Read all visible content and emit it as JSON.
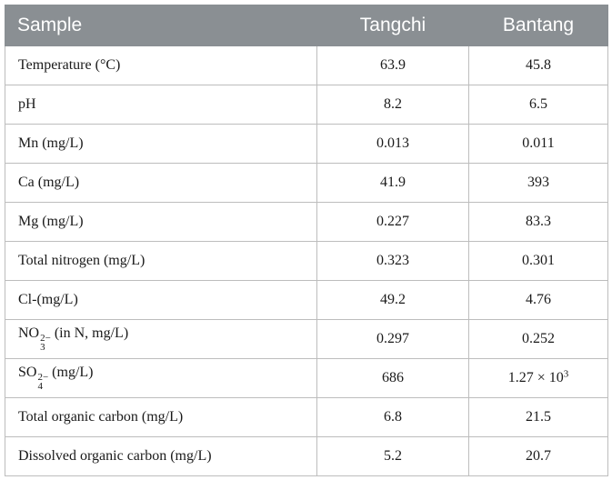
{
  "table": {
    "headers": [
      "Sample",
      "Tangchi",
      "Bantang"
    ],
    "rows": [
      {
        "label": "Temperature (°C)",
        "tangchi": "63.9",
        "bantang": "45.8"
      },
      {
        "label": "pH",
        "tangchi": "8.2",
        "bantang": "6.5"
      },
      {
        "label": "Mn (mg/L)",
        "tangchi": "0.013",
        "bantang": "0.011"
      },
      {
        "label": "Ca (mg/L)",
        "tangchi": "41.9",
        "bantang": "393"
      },
      {
        "label": "Mg (mg/L)",
        "tangchi": "0.227",
        "bantang": "83.3"
      },
      {
        "label": "Total nitrogen (mg/L)",
        "tangchi": "0.323",
        "bantang": "0.301"
      },
      {
        "label": "Cl-(mg/L)",
        "tangchi": "49.2",
        "bantang": "4.76"
      },
      {
        "label_base": "NO",
        "label_sub": "3",
        "label_sup": "2−",
        "label_rest": " (in N, mg/L)",
        "tangchi": "0.297",
        "bantang": "0.252"
      },
      {
        "label_base": "SO",
        "label_sub": "4",
        "label_sup": "2−",
        "label_rest": " (mg/L)",
        "tangchi": "686",
        "bantang_base": "1.27 × 10",
        "bantang_exp": "3"
      },
      {
        "label": "Total organic carbon (mg/L)",
        "tangchi": "6.8",
        "bantang": "21.5"
      },
      {
        "label": "Dissolved organic carbon (mg/L)",
        "tangchi": "5.2",
        "bantang": "20.7"
      }
    ]
  }
}
